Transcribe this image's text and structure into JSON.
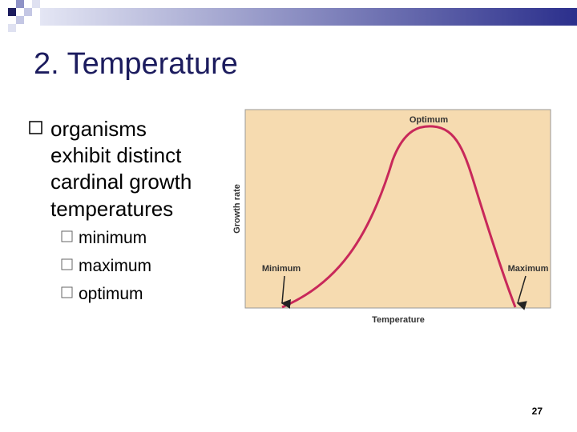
{
  "header": {
    "title": "2. Temperature"
  },
  "body": {
    "bullet": [
      "organisms",
      "exhibit distinct",
      "cardinal growth",
      "temperatures"
    ],
    "sub_bullets": [
      "minimum",
      "maximum",
      "optimum"
    ]
  },
  "figure": {
    "peak_label": "Optimum",
    "low_label": "Minimum",
    "high_label": "Maximum",
    "y_axis_label": "Growth rate",
    "x_axis_label": "Temperature"
  },
  "footer": {
    "page_number": "27"
  }
}
